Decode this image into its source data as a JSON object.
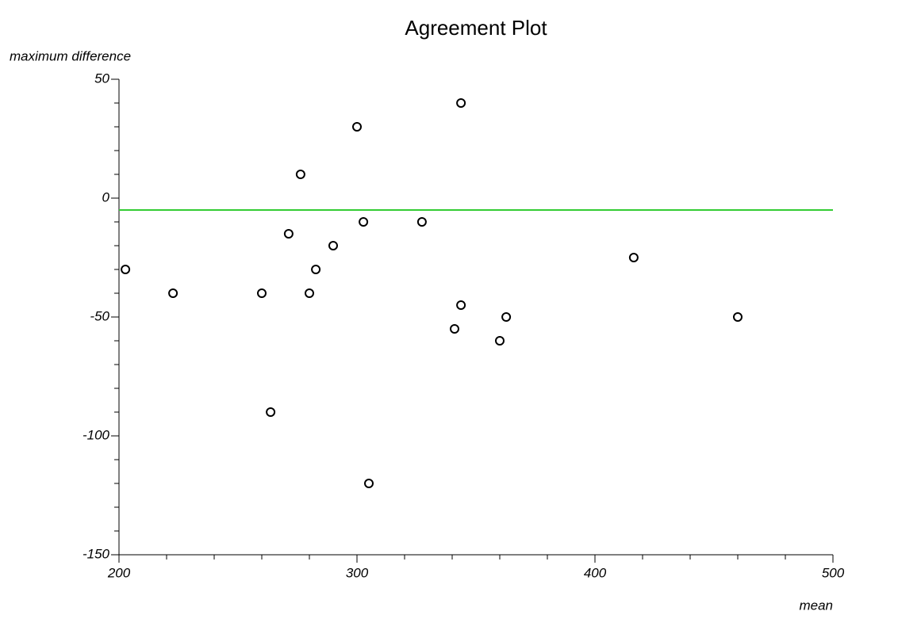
{
  "chart_data": {
    "type": "scatter",
    "title": "Agreement Plot",
    "x_label": "mean",
    "y_label": "maximum difference",
    "x": [
      202.7,
      222.7,
      260,
      263.7,
      271.3,
      276.3,
      280,
      282.7,
      290,
      300,
      302.7,
      305,
      327.3,
      341,
      343.7,
      343.7,
      360,
      362.7,
      416.3,
      460
    ],
    "values": [
      -30,
      -40,
      -40,
      -90,
      -15,
      10,
      -40,
      -30,
      -20,
      30,
      -10,
      -120,
      -10,
      -55,
      40,
      -45,
      -60,
      -50,
      -25,
      -50
    ],
    "color": "#000000",
    "reference_line": {
      "value": -5,
      "color": "#33cc33"
    },
    "xlim": [
      200,
      500
    ],
    "xticks": [
      200,
      300,
      400,
      500
    ],
    "xminor_ticks": [
      220,
      240,
      260,
      280,
      320,
      340,
      360,
      380,
      420,
      440,
      460,
      480
    ],
    "ylim": [
      -150,
      50
    ],
    "yticks": [
      -150,
      -100,
      -50,
      0,
      50
    ],
    "yminor_ticks": [
      -140,
      -130,
      -120,
      -110,
      -90,
      -80,
      -70,
      -60,
      -40,
      -30,
      -20,
      -10,
      10,
      20,
      30,
      40
    ],
    "grid": false
  }
}
